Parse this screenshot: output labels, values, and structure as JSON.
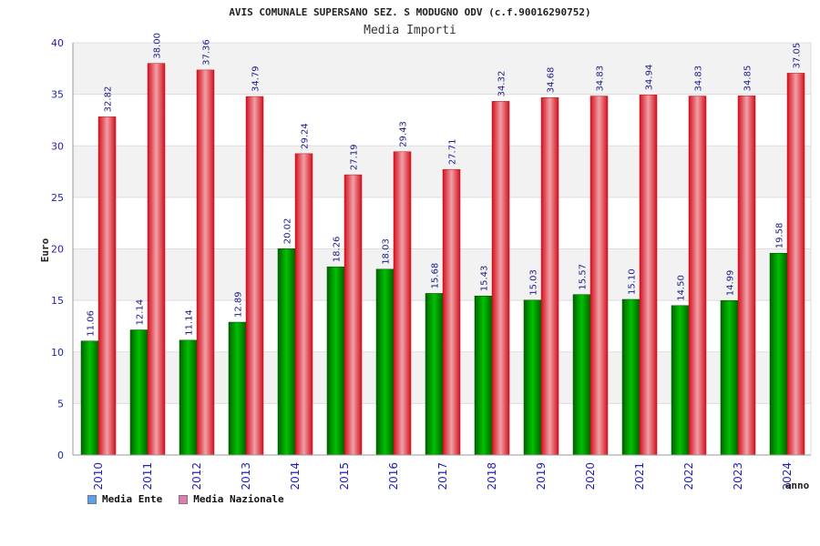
{
  "chart_data": {
    "type": "bar",
    "title": "AVIS COMUNALE SUPERSANO SEZ. S MODUGNO ODV (c.f.90016290752)",
    "subtitle": "Media Importi",
    "ylabel": "Euro",
    "xlabel": "anno",
    "ylim": [
      0,
      40
    ],
    "yticks": [
      0,
      5,
      10,
      15,
      20,
      25,
      30,
      35,
      40
    ],
    "grid": true,
    "legend_position": "bottom-left",
    "categories": [
      "2010",
      "2011",
      "2012",
      "2013",
      "2014",
      "2015",
      "2016",
      "2017",
      "2018",
      "2019",
      "2020",
      "2021",
      "2022",
      "2023",
      "2024"
    ],
    "series": [
      {
        "name": "Media Ente",
        "color": "#00a000",
        "legend_color": "#5aa0f0",
        "values": [
          11.06,
          12.14,
          11.14,
          12.89,
          20.02,
          18.26,
          18.03,
          15.68,
          15.43,
          15.03,
          15.57,
          15.1,
          14.5,
          14.99,
          19.58
        ],
        "labels": [
          "11.06",
          "12.14",
          "11.14",
          "12.89",
          "20.02",
          "18.26",
          "18.03",
          "15.68",
          "15.43",
          "15.03",
          "15.57",
          "15.10",
          "14.50",
          "14.99",
          "19.58"
        ]
      },
      {
        "name": "Media Nazionale",
        "color": "#e8202a",
        "legend_color": "#e07ab0",
        "values": [
          32.82,
          38.0,
          37.36,
          34.79,
          29.24,
          27.19,
          29.43,
          27.71,
          34.32,
          34.68,
          34.83,
          34.94,
          34.83,
          34.85,
          37.05
        ],
        "labels": [
          "32.82",
          "38.00",
          "37.36",
          "34.79",
          "29.24",
          "27.19",
          "29.43",
          "27.71",
          "34.32",
          "34.68",
          "34.83",
          "34.94",
          "34.83",
          "34.85",
          "37.05"
        ]
      }
    ]
  }
}
